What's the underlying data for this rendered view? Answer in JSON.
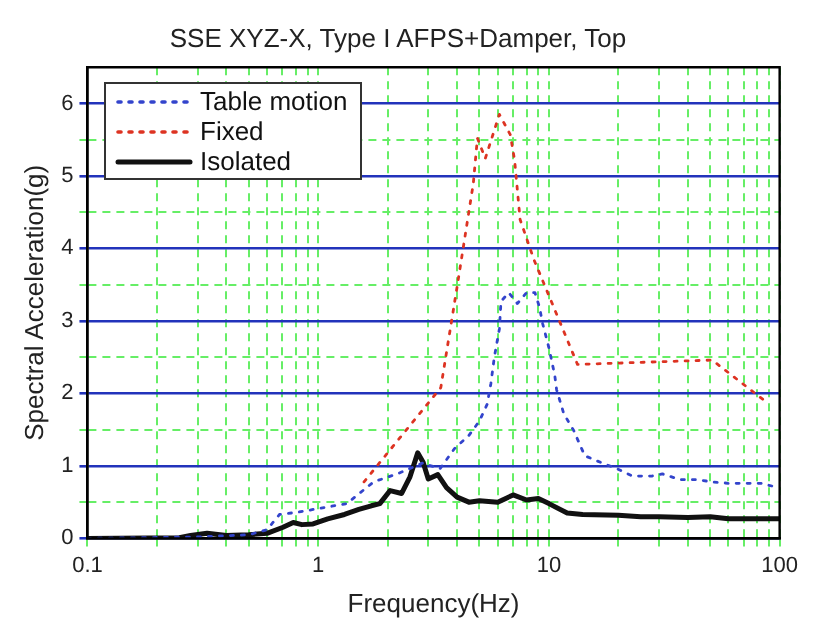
{
  "chart_data": {
    "type": "line",
    "title": "SSE XYZ-X, Type I AFPS+Damper, Top",
    "xlabel": "Frequency(Hz)",
    "ylabel": "Spectral Acceleration(g)",
    "log": "x",
    "xlim": [
      0.1,
      100
    ],
    "ylim": [
      0,
      6.5
    ],
    "xticks": [
      0.1,
      {
        "value": 0.2,
        "label": null
      },
      {
        "value": 0.3,
        "label": null
      },
      {
        "value": 0.4,
        "label": null
      },
      {
        "value": 0.5,
        "label": null
      },
      {
        "value": 0.6,
        "label": null
      },
      {
        "value": 0.7,
        "label": null
      },
      {
        "value": 0.8,
        "label": null
      },
      {
        "value": 0.9,
        "label": null
      },
      1,
      {
        "value": 2,
        "label": null
      },
      {
        "value": 3,
        "label": null
      },
      {
        "value": 4,
        "label": null
      },
      {
        "value": 5,
        "label": null
      },
      {
        "value": 6,
        "label": null
      },
      {
        "value": 7,
        "label": null
      },
      {
        "value": 8,
        "label": null
      },
      {
        "value": 9,
        "label": null
      },
      10,
      {
        "value": 20,
        "label": null
      },
      {
        "value": 30,
        "label": null
      },
      {
        "value": 40,
        "label": null
      },
      {
        "value": 50,
        "label": null
      },
      {
        "value": 60,
        "label": null
      },
      {
        "value": 70,
        "label": null
      },
      {
        "value": 80,
        "label": null
      },
      {
        "value": 90,
        "label": null
      },
      100
    ],
    "yticks": [
      0,
      {
        "value": 0.5,
        "label": null
      },
      1,
      {
        "value": 1.5,
        "label": null
      },
      2,
      {
        "value": 2.5,
        "label": null
      },
      3,
      {
        "value": 3.5,
        "label": null
      },
      4,
      {
        "value": 4.5,
        "label": null
      },
      5,
      {
        "value": 5.5,
        "label": null
      },
      6
    ],
    "grid": true,
    "legend": "top left",
    "series": [
      {
        "name": "Table motion",
        "color": "#3344cc",
        "line_style": "dotted",
        "x": [
          0.1,
          0.3,
          0.5,
          0.6,
          0.68,
          0.81,
          1.33,
          1.74,
          2.2,
          2.84,
          3.37,
          3.9,
          4.5,
          5.0,
          5.4,
          5.6,
          5.8,
          6.1,
          6.2,
          6.7,
          7.3,
          8.0,
          8.7,
          9.1,
          9.4,
          10,
          10.6,
          10.8,
          11.6,
          12.8,
          14.3,
          17,
          19.8,
          23,
          28,
          31,
          37,
          44,
          51,
          60,
          71,
          83,
          96
        ],
        "values": [
          0,
          0.02,
          0.05,
          0.12,
          0.33,
          0.36,
          0.48,
          0.78,
          0.89,
          1.04,
          0.96,
          1.24,
          1.42,
          1.62,
          1.85,
          2.13,
          2.5,
          2.89,
          3.27,
          3.39,
          3.24,
          3.39,
          3.39,
          3.19,
          2.96,
          2.63,
          2.25,
          2.05,
          1.72,
          1.49,
          1.14,
          1.04,
          0.96,
          0.86,
          0.86,
          0.89,
          0.81,
          0.81,
          0.78,
          0.76,
          0.76,
          0.76,
          0.71
        ]
      },
      {
        "name": "Fixed",
        "color": "#dd3322",
        "line_style": "dotted",
        "x": [
          1.58,
          3.4,
          4.0,
          4.7,
          4.9,
          5.3,
          6.1,
          6.8,
          7.1,
          7.5,
          8.6,
          13.3,
          51,
          86
        ],
        "values": [
          0.78,
          2.08,
          3.47,
          4.89,
          5.52,
          5.24,
          5.85,
          5.57,
          5.22,
          4.4,
          3.85,
          2.4,
          2.46,
          1.9
        ]
      },
      {
        "name": "Isolated",
        "color": "#111111",
        "line_style": "solid",
        "x": [
          0.1,
          0.25,
          0.28,
          0.33,
          0.4,
          0.5,
          0.6,
          0.7,
          0.78,
          0.85,
          0.95,
          1.1,
          1.3,
          1.5,
          1.7,
          1.85,
          2.05,
          2.3,
          2.5,
          2.7,
          2.85,
          3.0,
          3.3,
          3.6,
          4.0,
          4.5,
          5,
          6,
          7,
          8,
          9,
          10,
          12,
          14,
          20,
          25,
          30,
          40,
          50,
          60,
          100
        ],
        "values": [
          0,
          0.01,
          0.04,
          0.07,
          0.04,
          0.05,
          0.07,
          0.15,
          0.22,
          0.19,
          0.2,
          0.27,
          0.33,
          0.4,
          0.45,
          0.48,
          0.66,
          0.62,
          0.85,
          1.18,
          1.05,
          0.82,
          0.88,
          0.7,
          0.57,
          0.5,
          0.52,
          0.5,
          0.6,
          0.53,
          0.55,
          0.48,
          0.35,
          0.33,
          0.32,
          0.3,
          0.3,
          0.29,
          0.3,
          0.27,
          0.27
        ]
      }
    ]
  }
}
